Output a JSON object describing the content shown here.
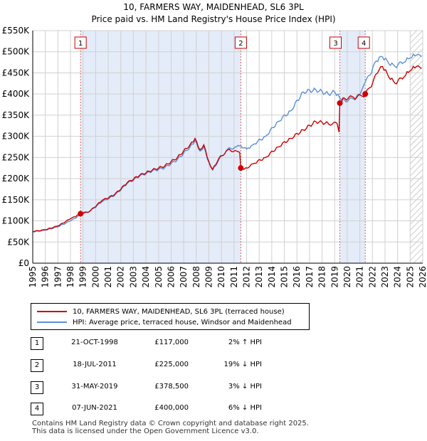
{
  "chart_data": {
    "type": "line",
    "title": "10, FARMERS WAY, MAIDENHEAD, SL6 3PL",
    "subtitle": "Price paid vs. HM Land Registry's House Price Index (HPI)",
    "xlim": [
      1995,
      2026
    ],
    "ylim": [
      0,
      550000
    ],
    "y_ticks": [
      {
        "value": 0,
        "label": "£0"
      },
      {
        "value": 50000,
        "label": "£50K"
      },
      {
        "value": 100000,
        "label": "£100K"
      },
      {
        "value": 150000,
        "label": "£150K"
      },
      {
        "value": 200000,
        "label": "£200K"
      },
      {
        "value": 250000,
        "label": "£250K"
      },
      {
        "value": 300000,
        "label": "£300K"
      },
      {
        "value": 350000,
        "label": "£350K"
      },
      {
        "value": 400000,
        "label": "£400K"
      },
      {
        "value": 450000,
        "label": "£450K"
      },
      {
        "value": 500000,
        "label": "£500K"
      },
      {
        "value": 550000,
        "label": "£550K"
      }
    ],
    "x_ticks": [
      "1995",
      "1996",
      "1997",
      "1998",
      "1999",
      "2000",
      "2001",
      "2002",
      "2003",
      "2004",
      "2005",
      "2006",
      "2007",
      "2008",
      "2009",
      "2010",
      "2011",
      "2012",
      "2013",
      "2014",
      "2015",
      "2016",
      "2017",
      "2018",
      "2019",
      "2020",
      "2021",
      "2022",
      "2023",
      "2024",
      "2025",
      "2026"
    ],
    "grid": true,
    "shaded_periods": [
      [
        1998.8,
        2011.54
      ],
      [
        2019.41,
        2021.43
      ]
    ],
    "hatched_from": 2025.0,
    "series": [
      {
        "name": "10, FARMERS WAY, MAIDENHEAD, SL6 3PL (terraced house)",
        "color": "#cc0000",
        "points": [
          [
            1995.0,
            75000
          ],
          [
            1996.0,
            79000
          ],
          [
            1997.0,
            88000
          ],
          [
            1998.0,
            105000
          ],
          [
            1998.8,
            117000
          ],
          [
            1999.5,
            122000
          ],
          [
            2000.5,
            148000
          ],
          [
            2001.5,
            162000
          ],
          [
            2002.5,
            190000
          ],
          [
            2003.5,
            208000
          ],
          [
            2004.5,
            220000
          ],
          [
            2005.5,
            230000
          ],
          [
            2006.5,
            250000
          ],
          [
            2007.5,
            280000
          ],
          [
            2007.9,
            295000
          ],
          [
            2008.3,
            268000
          ],
          [
            2008.6,
            280000
          ],
          [
            2009.0,
            240000
          ],
          [
            2009.3,
            222000
          ],
          [
            2009.8,
            248000
          ],
          [
            2010.5,
            268000
          ],
          [
            2011.2,
            265000
          ],
          [
            2011.45,
            262000
          ],
          [
            2011.54,
            225000
          ],
          [
            2011.8,
            222000
          ],
          [
            2012.5,
            235000
          ],
          [
            2013.5,
            250000
          ],
          [
            2014.5,
            275000
          ],
          [
            2015.5,
            295000
          ],
          [
            2016.5,
            315000
          ],
          [
            2017.5,
            335000
          ],
          [
            2018.5,
            330000
          ],
          [
            2019.2,
            330000
          ],
          [
            2019.35,
            310000
          ],
          [
            2019.41,
            378500
          ],
          [
            2019.8,
            390000
          ],
          [
            2020.5,
            392000
          ],
          [
            2021.2,
            395000
          ],
          [
            2021.43,
            400000
          ],
          [
            2021.8,
            415000
          ],
          [
            2022.5,
            455000
          ],
          [
            2022.8,
            465000
          ],
          [
            2023.3,
            440000
          ],
          [
            2023.8,
            425000
          ],
          [
            2024.5,
            440000
          ],
          [
            2025.0,
            455000
          ],
          [
            2025.5,
            465000
          ],
          [
            2025.9,
            460000
          ]
        ]
      },
      {
        "name": "HPI: Average price, terraced house, Windsor and Maidenhead",
        "color": "#5b8fd6",
        "points": [
          [
            1995.0,
            74000
          ],
          [
            1996.0,
            78000
          ],
          [
            1997.0,
            86000
          ],
          [
            1998.0,
            100000
          ],
          [
            1998.8,
            114000
          ],
          [
            1999.5,
            122000
          ],
          [
            2000.5,
            145000
          ],
          [
            2001.5,
            160000
          ],
          [
            2002.5,
            188000
          ],
          [
            2003.5,
            206000
          ],
          [
            2004.5,
            218000
          ],
          [
            2005.5,
            226000
          ],
          [
            2006.5,
            245000
          ],
          [
            2007.5,
            275000
          ],
          [
            2007.9,
            290000
          ],
          [
            2008.3,
            265000
          ],
          [
            2008.6,
            275000
          ],
          [
            2009.0,
            238000
          ],
          [
            2009.3,
            220000
          ],
          [
            2009.8,
            245000
          ],
          [
            2010.5,
            270000
          ],
          [
            2011.2,
            275000
          ],
          [
            2011.54,
            278000
          ],
          [
            2012.0,
            270000
          ],
          [
            2012.5,
            280000
          ],
          [
            2013.5,
            300000
          ],
          [
            2014.5,
            335000
          ],
          [
            2015.5,
            360000
          ],
          [
            2016.5,
            405000
          ],
          [
            2017.5,
            410000
          ],
          [
            2018.5,
            400000
          ],
          [
            2019.0,
            405000
          ],
          [
            2019.41,
            390000
          ],
          [
            2019.8,
            385000
          ],
          [
            2020.5,
            388000
          ],
          [
            2021.0,
            398000
          ],
          [
            2021.43,
            428000
          ],
          [
            2021.8,
            445000
          ],
          [
            2022.3,
            478000
          ],
          [
            2022.8,
            488000
          ],
          [
            2023.3,
            472000
          ],
          [
            2023.8,
            465000
          ],
          [
            2024.5,
            475000
          ],
          [
            2025.0,
            485000
          ],
          [
            2025.5,
            492000
          ],
          [
            2025.9,
            488000
          ]
        ]
      }
    ],
    "transactions": [
      {
        "num": "1",
        "x": 1998.8,
        "price": 117000,
        "date": "21-OCT-1998",
        "price_label": "£117,000",
        "hpi": "2% ↑ HPI"
      },
      {
        "num": "2",
        "x": 2011.54,
        "price": 225000,
        "date": "18-JUL-2011",
        "price_label": "£225,000",
        "hpi": "19% ↓ HPI"
      },
      {
        "num": "3",
        "x": 2019.41,
        "price": 378500,
        "date": "31-MAY-2019",
        "price_label": "£378,500",
        "hpi": "3% ↓ HPI"
      },
      {
        "num": "4",
        "x": 2021.43,
        "price": 400000,
        "date": "07-JUN-2021",
        "price_label": "£400,000",
        "hpi": "6% ↓ HPI"
      }
    ]
  },
  "footer": {
    "line1": "Contains HM Land Registry data © Crown copyright and database right 2025.",
    "line2": "This data is licensed under the Open Government Licence v3.0."
  }
}
